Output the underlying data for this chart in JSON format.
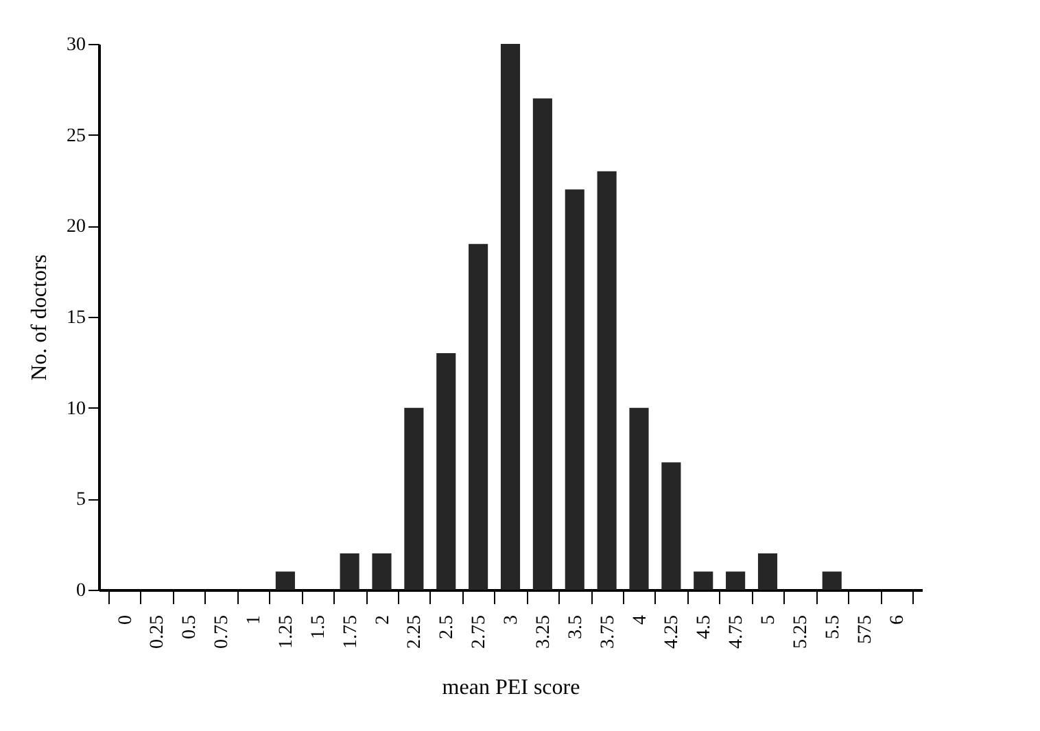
{
  "chart_data": {
    "type": "bar",
    "xlabel": "mean PEI score",
    "ylabel": "No. of doctors",
    "categories": [
      "0",
      "0.25",
      "0.5",
      "0.75",
      "1",
      "1.25",
      "1.5",
      "1.75",
      "2",
      "2.25",
      "2.5",
      "2.75",
      "3",
      "3.25",
      "3.5",
      "3.75",
      "4",
      "4.25",
      "4.5",
      "4.75",
      "5",
      "5.25",
      "5.5",
      "575",
      "6"
    ],
    "values": [
      0,
      0,
      0,
      0,
      0,
      1,
      0,
      2,
      2,
      10,
      13,
      19,
      30,
      27,
      22,
      23,
      10,
      7,
      1,
      1,
      2,
      0,
      1,
      0,
      0
    ],
    "color": "#262626",
    "ylim": [
      0,
      30
    ],
    "yticks": [
      0,
      5,
      10,
      15,
      20,
      25,
      30
    ],
    "grid": false
  }
}
